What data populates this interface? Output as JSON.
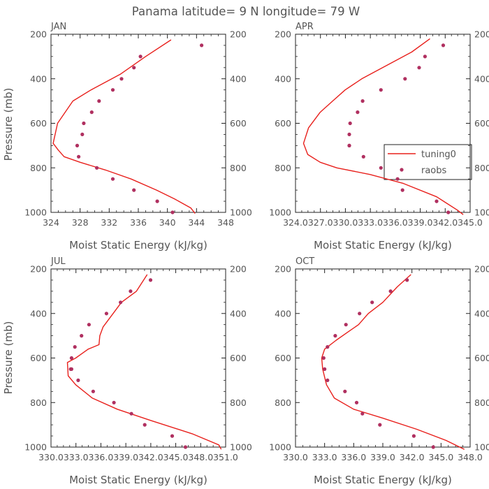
{
  "figure_title": "Panama  latitude= 9 N longitude= 79 W",
  "colors": {
    "line": "#e8201c",
    "markers": "#b03060",
    "axes": "#222222",
    "text": "#555555"
  },
  "chart_data": [
    {
      "panel": "JAN",
      "type": "line+scatter",
      "title": "JAN",
      "xlabel": "Moist Static Energy (kJ/kg)",
      "ylabel": "Pressure (mb)",
      "xlim": [
        324,
        348
      ],
      "ylim": [
        1000,
        200
      ],
      "xticks": [
        324,
        328,
        332,
        336,
        340,
        344,
        348
      ],
      "xticklabels": [
        "324",
        "328",
        "332",
        "336",
        "340",
        "344",
        "348"
      ],
      "yticks": [
        200,
        400,
        600,
        800,
        1000
      ],
      "yticklabels": [
        "200",
        "400",
        "600",
        "800",
        "1000"
      ],
      "legend": null,
      "series": [
        {
          "name": "tuning0",
          "kind": "line",
          "x": [
            340.5,
            337.0,
            333.5,
            329.5,
            327.0,
            324.9,
            324.3,
            325.0,
            325.8,
            328.0,
            331.5,
            335.0,
            338.5,
            341.0,
            343.2,
            343.8
          ],
          "y": [
            225,
            300,
            380,
            450,
            500,
            600,
            690,
            720,
            750,
            775,
            810,
            850,
            900,
            940,
            980,
            1005
          ]
        },
        {
          "name": "raobs",
          "kind": "scatter",
          "x": [
            344.7,
            336.3,
            335.4,
            333.7,
            332.5,
            330.6,
            329.6,
            328.5,
            328.3,
            327.6,
            327.8,
            330.3,
            332.5,
            335.4,
            338.6,
            340.7
          ],
          "y": [
            250,
            300,
            350,
            400,
            450,
            500,
            550,
            600,
            650,
            700,
            750,
            800,
            850,
            900,
            950,
            1000
          ]
        }
      ]
    },
    {
      "panel": "APR",
      "type": "line+scatter",
      "title": "APR",
      "xlabel": "Moist Static Energy (kJ/kg)",
      "ylabel": "Pressure (mb)",
      "xlim": [
        324.03,
        345.03
      ],
      "ylim": [
        1000,
        200
      ],
      "xticks": [
        324.03,
        327.03,
        330.03,
        333.03,
        336.03,
        339.03,
        342.03,
        345.03
      ],
      "xticklabels": [
        "324.0",
        "327.0",
        "330.0",
        "333.0",
        "336.0",
        "339.0",
        "342.0",
        "345.0"
      ],
      "yticks": [
        200,
        400,
        600,
        800,
        1000
      ],
      "yticklabels": [
        "200",
        "400",
        "600",
        "800",
        "1000"
      ],
      "legend": {
        "position": "right-middle",
        "entries": [
          "tuning0",
          "raobs"
        ]
      },
      "series": [
        {
          "name": "tuning0",
          "kind": "line",
          "x": [
            340.2,
            338.0,
            335.0,
            332.0,
            330.0,
            328.5,
            327.0,
            325.6,
            325.0,
            325.5,
            327.0,
            329.0,
            333.0,
            337.0,
            341.0,
            343.5,
            344.2
          ],
          "y": [
            220,
            280,
            340,
            400,
            450,
            500,
            550,
            620,
            690,
            740,
            775,
            800,
            830,
            870,
            930,
            990,
            1010
          ]
        },
        {
          "name": "raobs",
          "kind": "scatter",
          "x": [
            341.8,
            339.6,
            338.9,
            337.2,
            334.3,
            332.1,
            331.5,
            330.6,
            330.5,
            330.5,
            330.5,
            332.2,
            334.3,
            336.3,
            336.9,
            341.0,
            342.4
          ],
          "y": [
            250,
            300,
            350,
            400,
            450,
            500,
            550,
            600,
            650,
            700,
            700,
            750,
            800,
            850,
            900,
            950,
            1000
          ]
        }
      ]
    },
    {
      "panel": "JUL",
      "type": "line+scatter",
      "title": "JUL",
      "xlabel": "Moist Static Energy (kJ/kg)",
      "ylabel": "Pressure (mb)",
      "xlim": [
        330.03,
        351.03
      ],
      "ylim": [
        1000,
        200
      ],
      "xticks": [
        330.03,
        333.03,
        336.03,
        339.03,
        342.03,
        345.03,
        348.03,
        351.03
      ],
      "xticklabels": [
        "330.0",
        "333.0",
        "336.0",
        "339.0",
        "342.0",
        "345.0",
        "348.0",
        "351.0"
      ],
      "yticks": [
        200,
        400,
        600,
        800,
        1000
      ],
      "yticklabels": [
        "200",
        "400",
        "600",
        "800",
        "1000"
      ],
      "legend": null,
      "series": [
        {
          "name": "tuning0",
          "kind": "line",
          "x": [
            341.6,
            340.3,
            338.5,
            337.5,
            336.3,
            335.9,
            335.8,
            334.5,
            333.0,
            332.0,
            332.1,
            333.0,
            335.0,
            338.0,
            342.0,
            347.0,
            350.2,
            350.5
          ],
          "y": [
            225,
            300,
            350,
            400,
            460,
            500,
            540,
            560,
            600,
            620,
            680,
            720,
            780,
            830,
            880,
            940,
            990,
            1010
          ]
        },
        {
          "name": "raobs",
          "kind": "scatter",
          "x": [
            342.0,
            339.6,
            338.4,
            336.7,
            334.6,
            333.7,
            332.9,
            332.5,
            332.4,
            332.5,
            333.3,
            335.1,
            337.6,
            339.7,
            341.3,
            344.6,
            346.2
          ],
          "y": [
            250,
            300,
            350,
            400,
            450,
            500,
            550,
            600,
            650,
            650,
            700,
            750,
            800,
            850,
            900,
            950,
            1000
          ]
        }
      ]
    },
    {
      "panel": "OCT",
      "type": "line+scatter",
      "title": "OCT",
      "xlabel": "Moist Static Energy (kJ/kg)",
      "ylabel": "Pressure (mb)",
      "xlim": [
        330.0,
        348.0
      ],
      "ylim": [
        1000,
        200
      ],
      "xticks": [
        330.0,
        333.0,
        336.0,
        339.0,
        342.0,
        345.0,
        348.0
      ],
      "xticklabels": [
        "330.0",
        "333.0",
        "336.0",
        "339.0",
        "342.0",
        "345.0",
        "348.0"
      ],
      "yticks": [
        200,
        400,
        600,
        800,
        1000
      ],
      "yticklabels": [
        "200",
        "400",
        "600",
        "800",
        "1000"
      ],
      "legend": null,
      "series": [
        {
          "name": "tuning0",
          "kind": "line",
          "x": [
            341.9,
            340.5,
            339.0,
            337.5,
            336.5,
            335.5,
            334.2,
            333.0,
            332.7,
            332.8,
            333.2,
            334.0,
            336.0,
            339.0,
            342.5,
            345.5,
            347.4
          ],
          "y": [
            225,
            280,
            350,
            400,
            450,
            480,
            520,
            560,
            600,
            650,
            720,
            780,
            830,
            870,
            920,
            970,
            1010
          ]
        },
        {
          "name": "raobs",
          "kind": "scatter",
          "x": [
            341.5,
            339.8,
            337.9,
            336.6,
            335.2,
            334.1,
            333.3,
            332.9,
            333.0,
            333.3,
            335.1,
            336.3,
            336.9,
            338.7,
            342.2,
            344.2
          ],
          "y": [
            250,
            300,
            350,
            400,
            450,
            500,
            550,
            600,
            650,
            700,
            750,
            800,
            850,
            900,
            950,
            1000
          ]
        }
      ]
    }
  ]
}
